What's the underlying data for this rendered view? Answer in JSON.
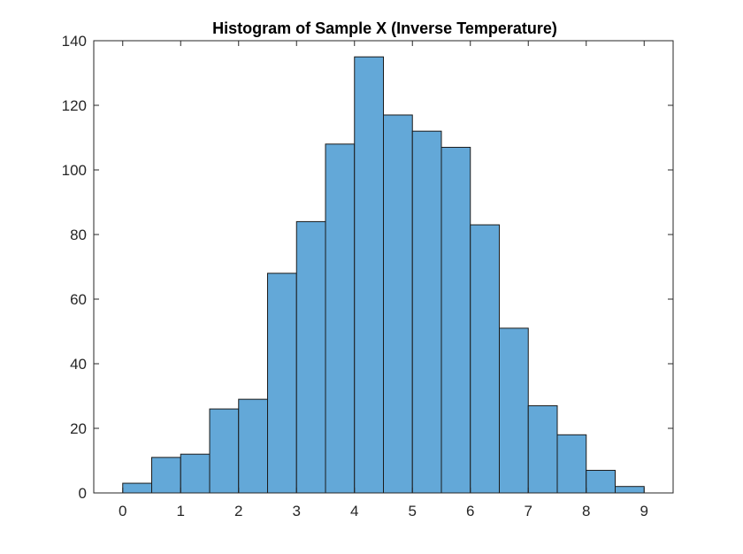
{
  "chart_data": {
    "type": "bar",
    "title": "Histogram of Sample X (Inverse Temperature)",
    "xlabel": "",
    "ylabel": "",
    "bin_edges": [
      0,
      0.5,
      1,
      1.5,
      2,
      2.5,
      3,
      3.5,
      4,
      4.5,
      5,
      5.5,
      6,
      6.5,
      7,
      7.5,
      8,
      8.5,
      9
    ],
    "values": [
      3,
      11,
      12,
      26,
      29,
      68,
      84,
      108,
      135,
      117,
      112,
      107,
      83,
      51,
      27,
      18,
      7,
      2
    ],
    "xlim": [
      -0.5,
      9.5
    ],
    "ylim": [
      0,
      140
    ],
    "x_ticks": [
      0,
      1,
      2,
      3,
      4,
      5,
      6,
      7,
      8,
      9
    ],
    "x_tick_labels": [
      "0",
      "1",
      "2",
      "3",
      "4",
      "5",
      "6",
      "7",
      "8",
      "9"
    ],
    "y_ticks": [
      0,
      20,
      40,
      60,
      80,
      100,
      120,
      140
    ],
    "y_tick_labels": [
      "0",
      "20",
      "40",
      "60",
      "80",
      "100",
      "120",
      "140"
    ],
    "grid": false,
    "legend": "none",
    "colors": {
      "bar_fill": "#63A8D8",
      "bar_edge": "#1A1A1A",
      "axis": "#262626",
      "background": "#FFFFFF"
    }
  }
}
